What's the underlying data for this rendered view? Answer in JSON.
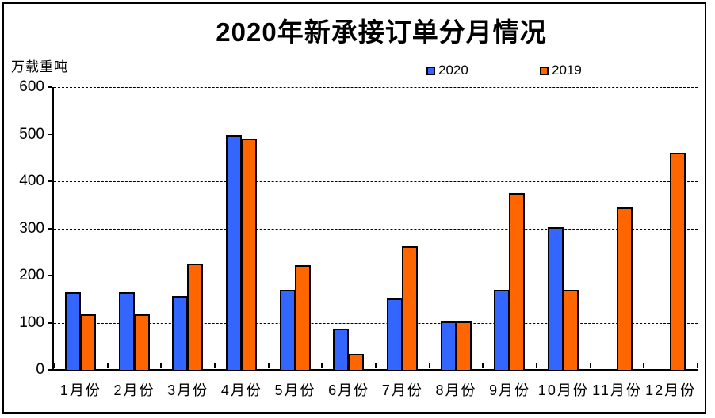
{
  "title": "2020年新承接订单分月情况",
  "unit_label": "万载重吨",
  "colors": {
    "series_2020": "#3366FF",
    "series_2019": "#FF6600",
    "axis": "#000000",
    "background": "#FFFFFF"
  },
  "legend": {
    "items": [
      {
        "label": "2020",
        "color": "#3366FF"
      },
      {
        "label": "2019",
        "color": "#FF6600"
      }
    ],
    "position": "top"
  },
  "chart_data": {
    "type": "bar",
    "title": "2020年新承接订单分月情况",
    "ylabel": "万载重吨",
    "xlabel": "",
    "ylim": [
      0,
      600
    ],
    "ytick_interval": 100,
    "yticks": [
      0,
      100,
      200,
      300,
      400,
      500,
      600
    ],
    "grid": "horizontal-dashed",
    "legend_position": "top",
    "categories": [
      "1月份",
      "2月份",
      "3月份",
      "4月份",
      "5月份",
      "6月份",
      "7月份",
      "8月份",
      "9月份",
      "10月份",
      "11月份",
      "12月份"
    ],
    "series": [
      {
        "name": "2020",
        "color": "#3366FF",
        "values": [
          165,
          165,
          156,
          498,
          170,
          88,
          151,
          102,
          170,
          303,
          null,
          null
        ]
      },
      {
        "name": "2019",
        "color": "#FF6600",
        "values": [
          117,
          117,
          225,
          490,
          222,
          33,
          262,
          102,
          375,
          170,
          345,
          460
        ]
      }
    ]
  }
}
